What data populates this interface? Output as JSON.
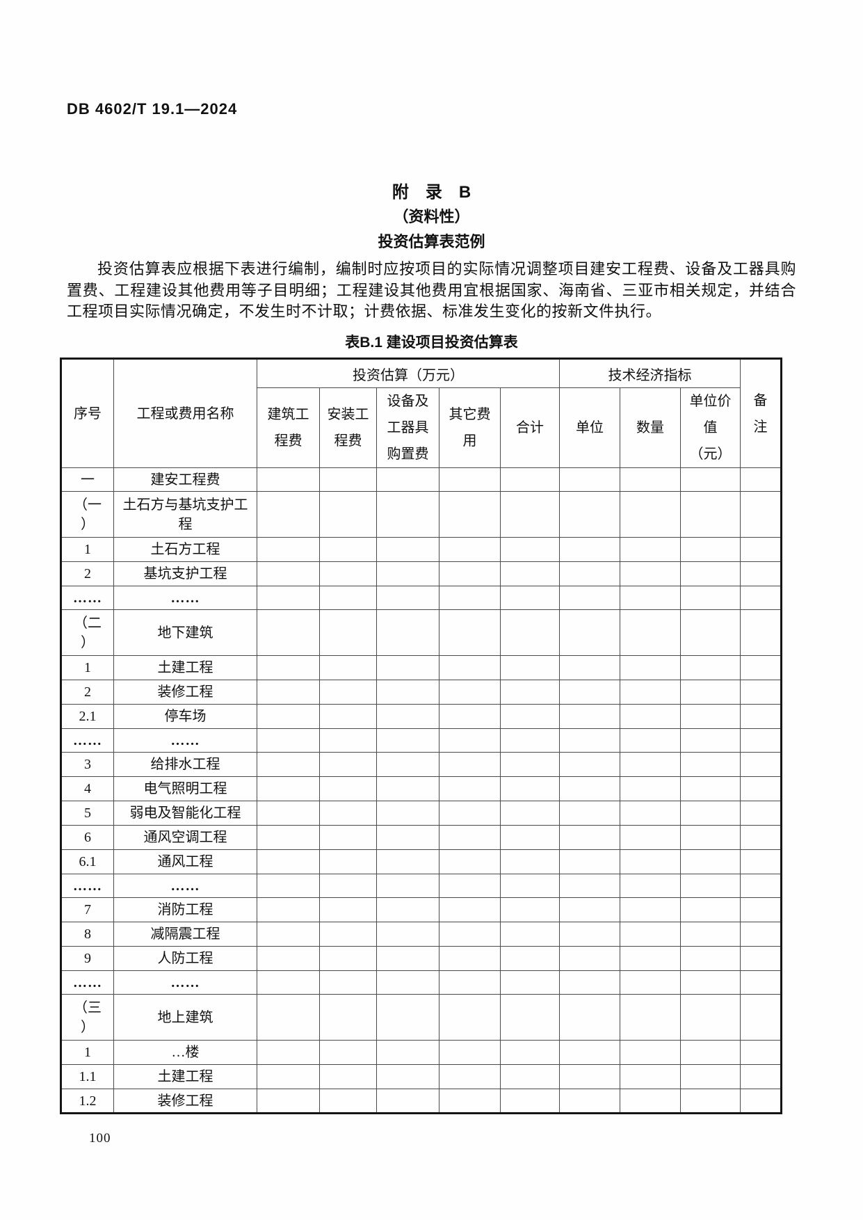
{
  "page": {
    "doc_code": "DB 4602/T 19.1—2024",
    "page_number": "100"
  },
  "appendix": {
    "title": "附　录　B",
    "subtitle": "（资料性）",
    "heading": "投资估算表范例",
    "paragraph": "投资估算表应根据下表进行编制，编制时应按项目的实际情况调整项目建安工程费、设备及工器具购置费、工程建设其他费用等子目明细；工程建设其他费用宜根据国家、海南省、三亚市相关规定，并结合工程项目实际情况确定，不发生时不计取；计费依据、标准发生变化的按新文件执行。"
  },
  "table": {
    "caption": "表B.1 建设项目投资估算表",
    "header": {
      "col_serial": "序号",
      "col_name": "工程或费用名称",
      "group_invest": "投资估算（万元）",
      "group_tech": "技术经济指标",
      "col_construction": "建筑工\n程费",
      "col_install": "安装工\n程费",
      "col_equipment": "设备及\n工器具\n购置费",
      "col_other": "其它费\n用",
      "col_total": "合计",
      "col_unit": "单位",
      "col_quantity": "数量",
      "col_unit_price": "单位价\n值\n（元）",
      "col_remark": "备\n注"
    },
    "rows": [
      {
        "serial": "一",
        "name": "建安工程费"
      },
      {
        "serial": "（一\n）",
        "name": "土石方与基坑支护工\n程"
      },
      {
        "serial": "1",
        "name": "土石方工程"
      },
      {
        "serial": "2",
        "name": "基坑支护工程"
      },
      {
        "serial": "……",
        "name": "……"
      },
      {
        "serial": "（二\n）",
        "name": "地下建筑"
      },
      {
        "serial": "1",
        "name": "土建工程"
      },
      {
        "serial": "2",
        "name": "装修工程"
      },
      {
        "serial": "2.1",
        "name": "停车场"
      },
      {
        "serial": "……",
        "name": "……"
      },
      {
        "serial": "3",
        "name": "给排水工程"
      },
      {
        "serial": "4",
        "name": "电气照明工程"
      },
      {
        "serial": "5",
        "name": "弱电及智能化工程"
      },
      {
        "serial": "6",
        "name": "通风空调工程"
      },
      {
        "serial": "6.1",
        "name": "通风工程"
      },
      {
        "serial": "……",
        "name": "……"
      },
      {
        "serial": "7",
        "name": "消防工程"
      },
      {
        "serial": "8",
        "name": "减隔震工程"
      },
      {
        "serial": "9",
        "name": "人防工程"
      },
      {
        "serial": "……",
        "name": "……"
      },
      {
        "serial": "（三\n）",
        "name": "地上建筑"
      },
      {
        "serial": "1",
        "name": "…楼"
      },
      {
        "serial": "1.1",
        "name": "土建工程"
      },
      {
        "serial": "1.2",
        "name": "装修工程"
      }
    ]
  }
}
